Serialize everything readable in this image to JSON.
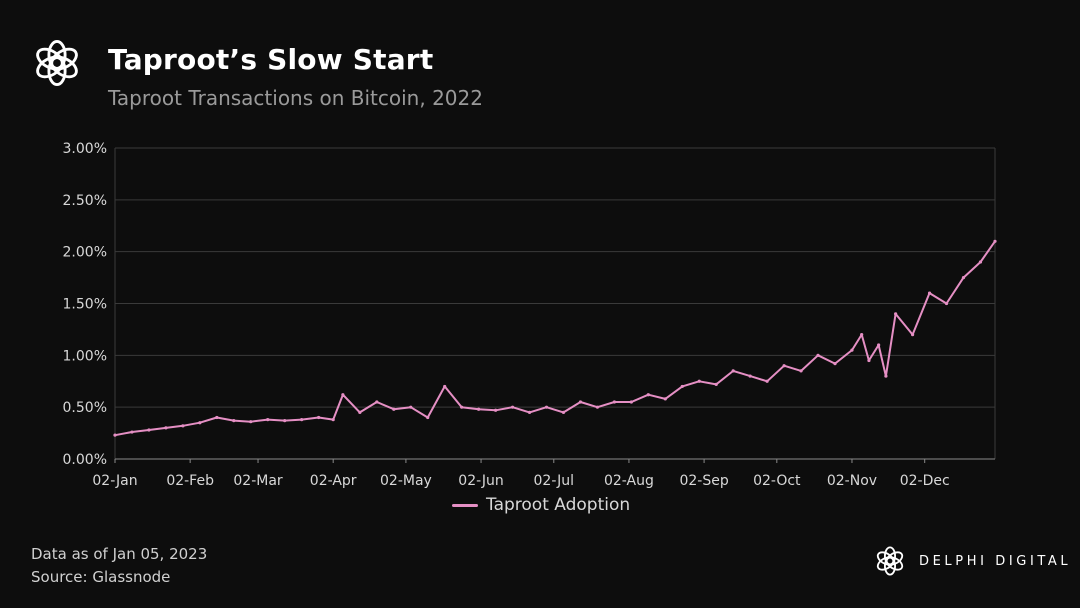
{
  "header": {
    "title": "Taproot’s Slow Start",
    "subtitle": "Taproot Transactions on Bitcoin, 2022"
  },
  "footer": {
    "data_date": "Data as of Jan 05, 2023",
    "source": "Source: Glassnode"
  },
  "brand": {
    "name": "DELPHI DIGITAL",
    "logo_icon": "delphi-flower-logo"
  },
  "colors": {
    "background": "#0d0d0d",
    "series": "#e58fc4",
    "grid": "#3a3a3a",
    "axis_text": "#d8d8d8"
  },
  "chart_data": {
    "type": "line",
    "x_tick_labels": [
      "02-Jan",
      "02-Feb",
      "02-Mar",
      "02-Apr",
      "02-May",
      "02-Jun",
      "02-Jul",
      "02-Aug",
      "02-Sep",
      "02-Oct",
      "02-Nov",
      "02-Dec"
    ],
    "y_tick_labels": [
      "0.00%",
      "0.50%",
      "1.00%",
      "1.50%",
      "2.00%",
      "2.50%",
      "3.00%"
    ],
    "ylim": [
      0,
      3.0
    ],
    "y_unit": "%",
    "grid": "horizontal",
    "legend_position": "bottom-center",
    "series": [
      {
        "name": "Taproot Adoption",
        "x": [
          "2022-01-02",
          "2022-01-09",
          "2022-01-16",
          "2022-01-23",
          "2022-01-30",
          "2022-02-06",
          "2022-02-13",
          "2022-02-20",
          "2022-02-27",
          "2022-03-06",
          "2022-03-13",
          "2022-03-20",
          "2022-03-27",
          "2022-04-02",
          "2022-04-06",
          "2022-04-13",
          "2022-04-20",
          "2022-04-27",
          "2022-05-04",
          "2022-05-11",
          "2022-05-18",
          "2022-05-25",
          "2022-06-01",
          "2022-06-08",
          "2022-06-15",
          "2022-06-22",
          "2022-06-29",
          "2022-07-06",
          "2022-07-13",
          "2022-07-20",
          "2022-07-27",
          "2022-08-03",
          "2022-08-10",
          "2022-08-17",
          "2022-08-24",
          "2022-08-31",
          "2022-09-07",
          "2022-09-14",
          "2022-09-21",
          "2022-09-28",
          "2022-10-05",
          "2022-10-12",
          "2022-10-19",
          "2022-10-26",
          "2022-11-02",
          "2022-11-06",
          "2022-11-09",
          "2022-11-13",
          "2022-11-16",
          "2022-11-20",
          "2022-11-27",
          "2022-12-04",
          "2022-12-11",
          "2022-12-18",
          "2022-12-25",
          "2022-12-31"
        ],
        "values": [
          0.23,
          0.26,
          0.28,
          0.3,
          0.32,
          0.35,
          0.4,
          0.37,
          0.36,
          0.38,
          0.37,
          0.38,
          0.4,
          0.38,
          0.62,
          0.45,
          0.55,
          0.48,
          0.5,
          0.4,
          0.7,
          0.5,
          0.48,
          0.47,
          0.5,
          0.45,
          0.5,
          0.45,
          0.55,
          0.5,
          0.55,
          0.55,
          0.62,
          0.58,
          0.7,
          0.75,
          0.72,
          0.85,
          0.8,
          0.75,
          0.9,
          0.85,
          1.0,
          0.92,
          1.05,
          1.2,
          0.95,
          1.1,
          0.8,
          1.4,
          1.2,
          1.6,
          1.5,
          1.75,
          1.9,
          2.1
        ]
      }
    ]
  }
}
